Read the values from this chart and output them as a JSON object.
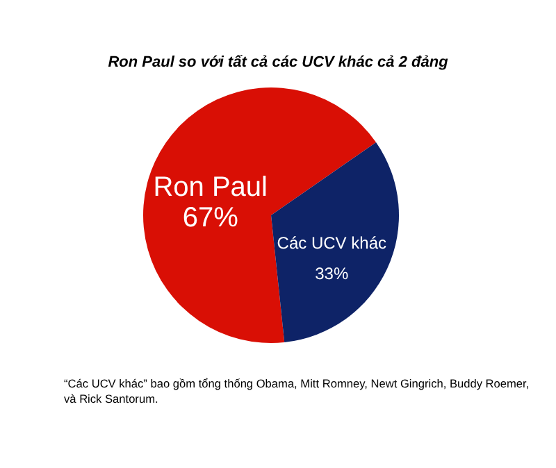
{
  "chart_data": {
    "type": "pie",
    "title": "Ron Paul so với tất cả các UCV khác cả 2 đảng",
    "categories": [
      "Ron Paul",
      "Các UCV khác"
    ],
    "values": [
      67,
      33
    ],
    "value_labels": [
      "67%",
      "33%"
    ],
    "colors": [
      "#d90f05",
      "#0e2367"
    ],
    "annotations": [
      "“Các UCV khác” bao gồm tổng thống Obama, Mitt Romney, Newt Gingrich, Buddy Roemer, và Rick Santorum."
    ]
  }
}
